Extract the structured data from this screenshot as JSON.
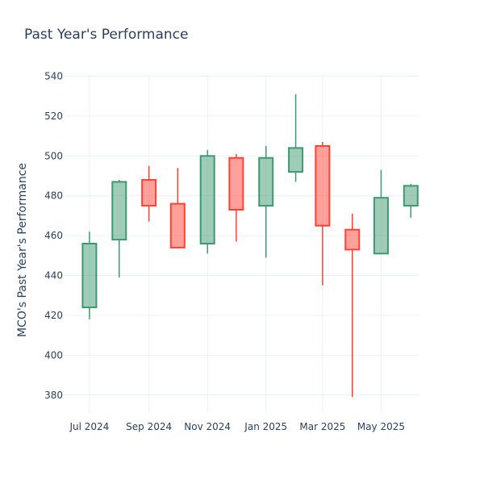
{
  "chart_data": {
    "type": "candlestick",
    "title": "Past Year's Performance",
    "ylabel": "MCO's Past Year's Performance",
    "xlabel": "",
    "ylim": [
      371,
      541
    ],
    "yticks": [
      380,
      400,
      420,
      440,
      460,
      480,
      500,
      520,
      540
    ],
    "xticks": [
      {
        "label": "Jul 2024",
        "date": "2024-07-01"
      },
      {
        "label": "Sep 2024",
        "date": "2024-09-01"
      },
      {
        "label": "Nov 2024",
        "date": "2024-11-01"
      },
      {
        "label": "Jan 2025",
        "date": "2025-01-01"
      },
      {
        "label": "Mar 2025",
        "date": "2025-03-01"
      },
      {
        "label": "May 2025",
        "date": "2025-05-01"
      }
    ],
    "xlim": [
      "2024-06-05",
      "2025-06-10"
    ],
    "grid": true,
    "colors": {
      "increasing": "#3d9970",
      "decreasing": "#ff4136"
    },
    "candles": [
      {
        "date": "2024-07-01",
        "open": 424,
        "high": 462,
        "low": 418,
        "close": 456
      },
      {
        "date": "2024-08-01",
        "open": 458,
        "high": 488,
        "low": 439,
        "close": 487
      },
      {
        "date": "2024-09-01",
        "open": 488,
        "high": 495,
        "low": 467,
        "close": 475
      },
      {
        "date": "2024-10-01",
        "open": 476,
        "high": 494,
        "low": 454,
        "close": 454
      },
      {
        "date": "2024-11-01",
        "open": 456,
        "high": 503,
        "low": 451,
        "close": 500
      },
      {
        "date": "2024-12-01",
        "open": 499,
        "high": 501,
        "low": 457,
        "close": 473
      },
      {
        "date": "2025-01-01",
        "open": 475,
        "high": 505,
        "low": 449,
        "close": 499
      },
      {
        "date": "2025-02-01",
        "open": 492,
        "high": 531,
        "low": 487,
        "close": 504
      },
      {
        "date": "2025-03-01",
        "open": 505,
        "high": 507,
        "low": 435,
        "close": 465
      },
      {
        "date": "2025-04-01",
        "open": 463,
        "high": 471,
        "low": 379,
        "close": 453
      },
      {
        "date": "2025-05-01",
        "open": 451,
        "high": 493,
        "low": 451,
        "close": 479
      },
      {
        "date": "2025-06-01",
        "open": 475,
        "high": 486,
        "low": 469,
        "close": 485
      }
    ]
  }
}
